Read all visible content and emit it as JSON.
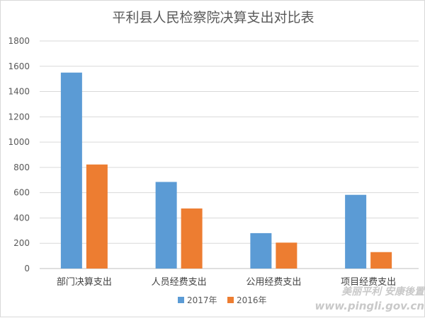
{
  "chart_data": {
    "type": "bar",
    "title": "平利县人民检察院决算支出对比表",
    "categories": [
      "部门决算支出",
      "人员经费支出",
      "公用经费支出",
      "项目经费支出"
    ],
    "series": [
      {
        "name": "2017年",
        "values": [
          1550,
          685,
          280,
          583
        ],
        "color": "#5b9bd5"
      },
      {
        "name": "2016年",
        "values": [
          823,
          475,
          205,
          130
        ],
        "color": "#ed7d31"
      }
    ],
    "ylim": [
      0,
      1800
    ],
    "yticks": [
      0,
      200,
      400,
      600,
      800,
      1000,
      1200,
      1400,
      1600,
      1800
    ],
    "grid": true,
    "legend_position": "bottom"
  },
  "watermark": {
    "line1": "美丽平利 安康後置",
    "line2": "www.pingli.gov.cn"
  },
  "colors": {
    "grid": "#d9d9d9",
    "axis": "#bfbfbf"
  }
}
